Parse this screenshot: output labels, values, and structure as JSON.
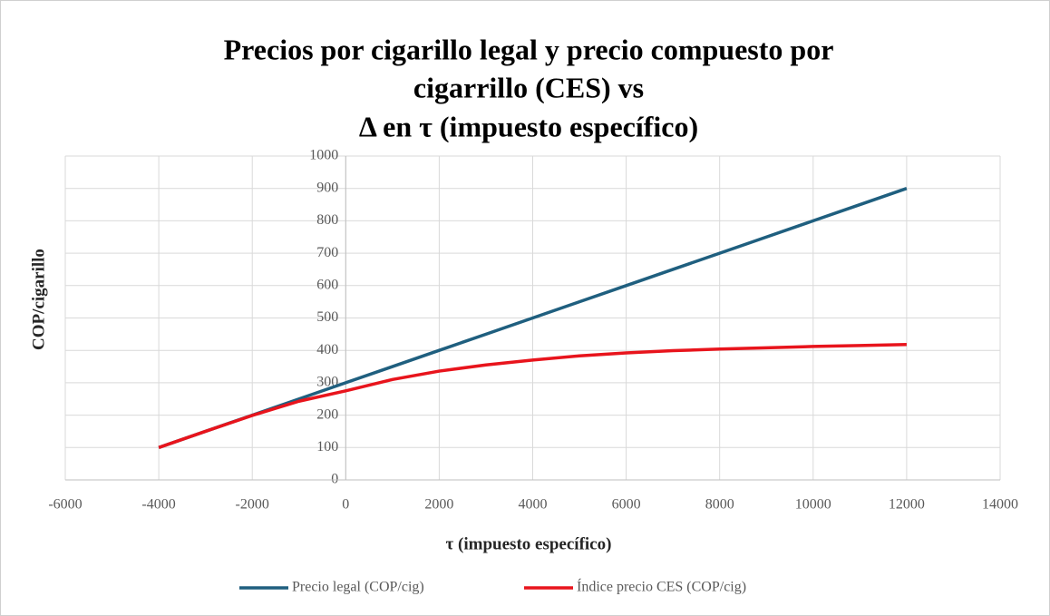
{
  "chart_data": {
    "type": "line",
    "title": [
      "Precios por cigarillo legal y precio compuesto por",
      "cigarrillo (CES) vs",
      "Δ en τ (impuesto específico)"
    ],
    "x_label": "τ (impuesto específico)",
    "y_label": "COP/cigarillo",
    "x": [
      -4000,
      -3000,
      -2000,
      -1000,
      0,
      1000,
      2000,
      3000,
      4000,
      5000,
      6000,
      7000,
      8000,
      9000,
      10000,
      11000,
      12000
    ],
    "series": [
      {
        "name": "Precio legal (COP/cig)",
        "color": "#1f5f7f",
        "values": [
          100,
          150,
          200,
          250,
          300,
          350,
          400,
          450,
          500,
          550,
          600,
          650,
          700,
          750,
          800,
          850,
          900
        ]
      },
      {
        "name": "Índice precio CES (COP/cig)",
        "color": "#e8141c",
        "values": [
          100,
          150,
          199,
          243,
          275,
          310,
          336,
          355,
          370,
          383,
          392,
          399,
          404,
          408,
          412,
          415,
          418
        ]
      }
    ],
    "xlim": [
      -6000,
      14000
    ],
    "xticks": [
      -6000,
      -4000,
      -2000,
      0,
      2000,
      4000,
      6000,
      8000,
      10000,
      12000,
      14000
    ],
    "ylim": [
      0,
      1000
    ],
    "yticks": [
      0,
      100,
      200,
      300,
      400,
      500,
      600,
      700,
      800,
      900,
      1000
    ],
    "grid": true,
    "legend": "bottom"
  }
}
